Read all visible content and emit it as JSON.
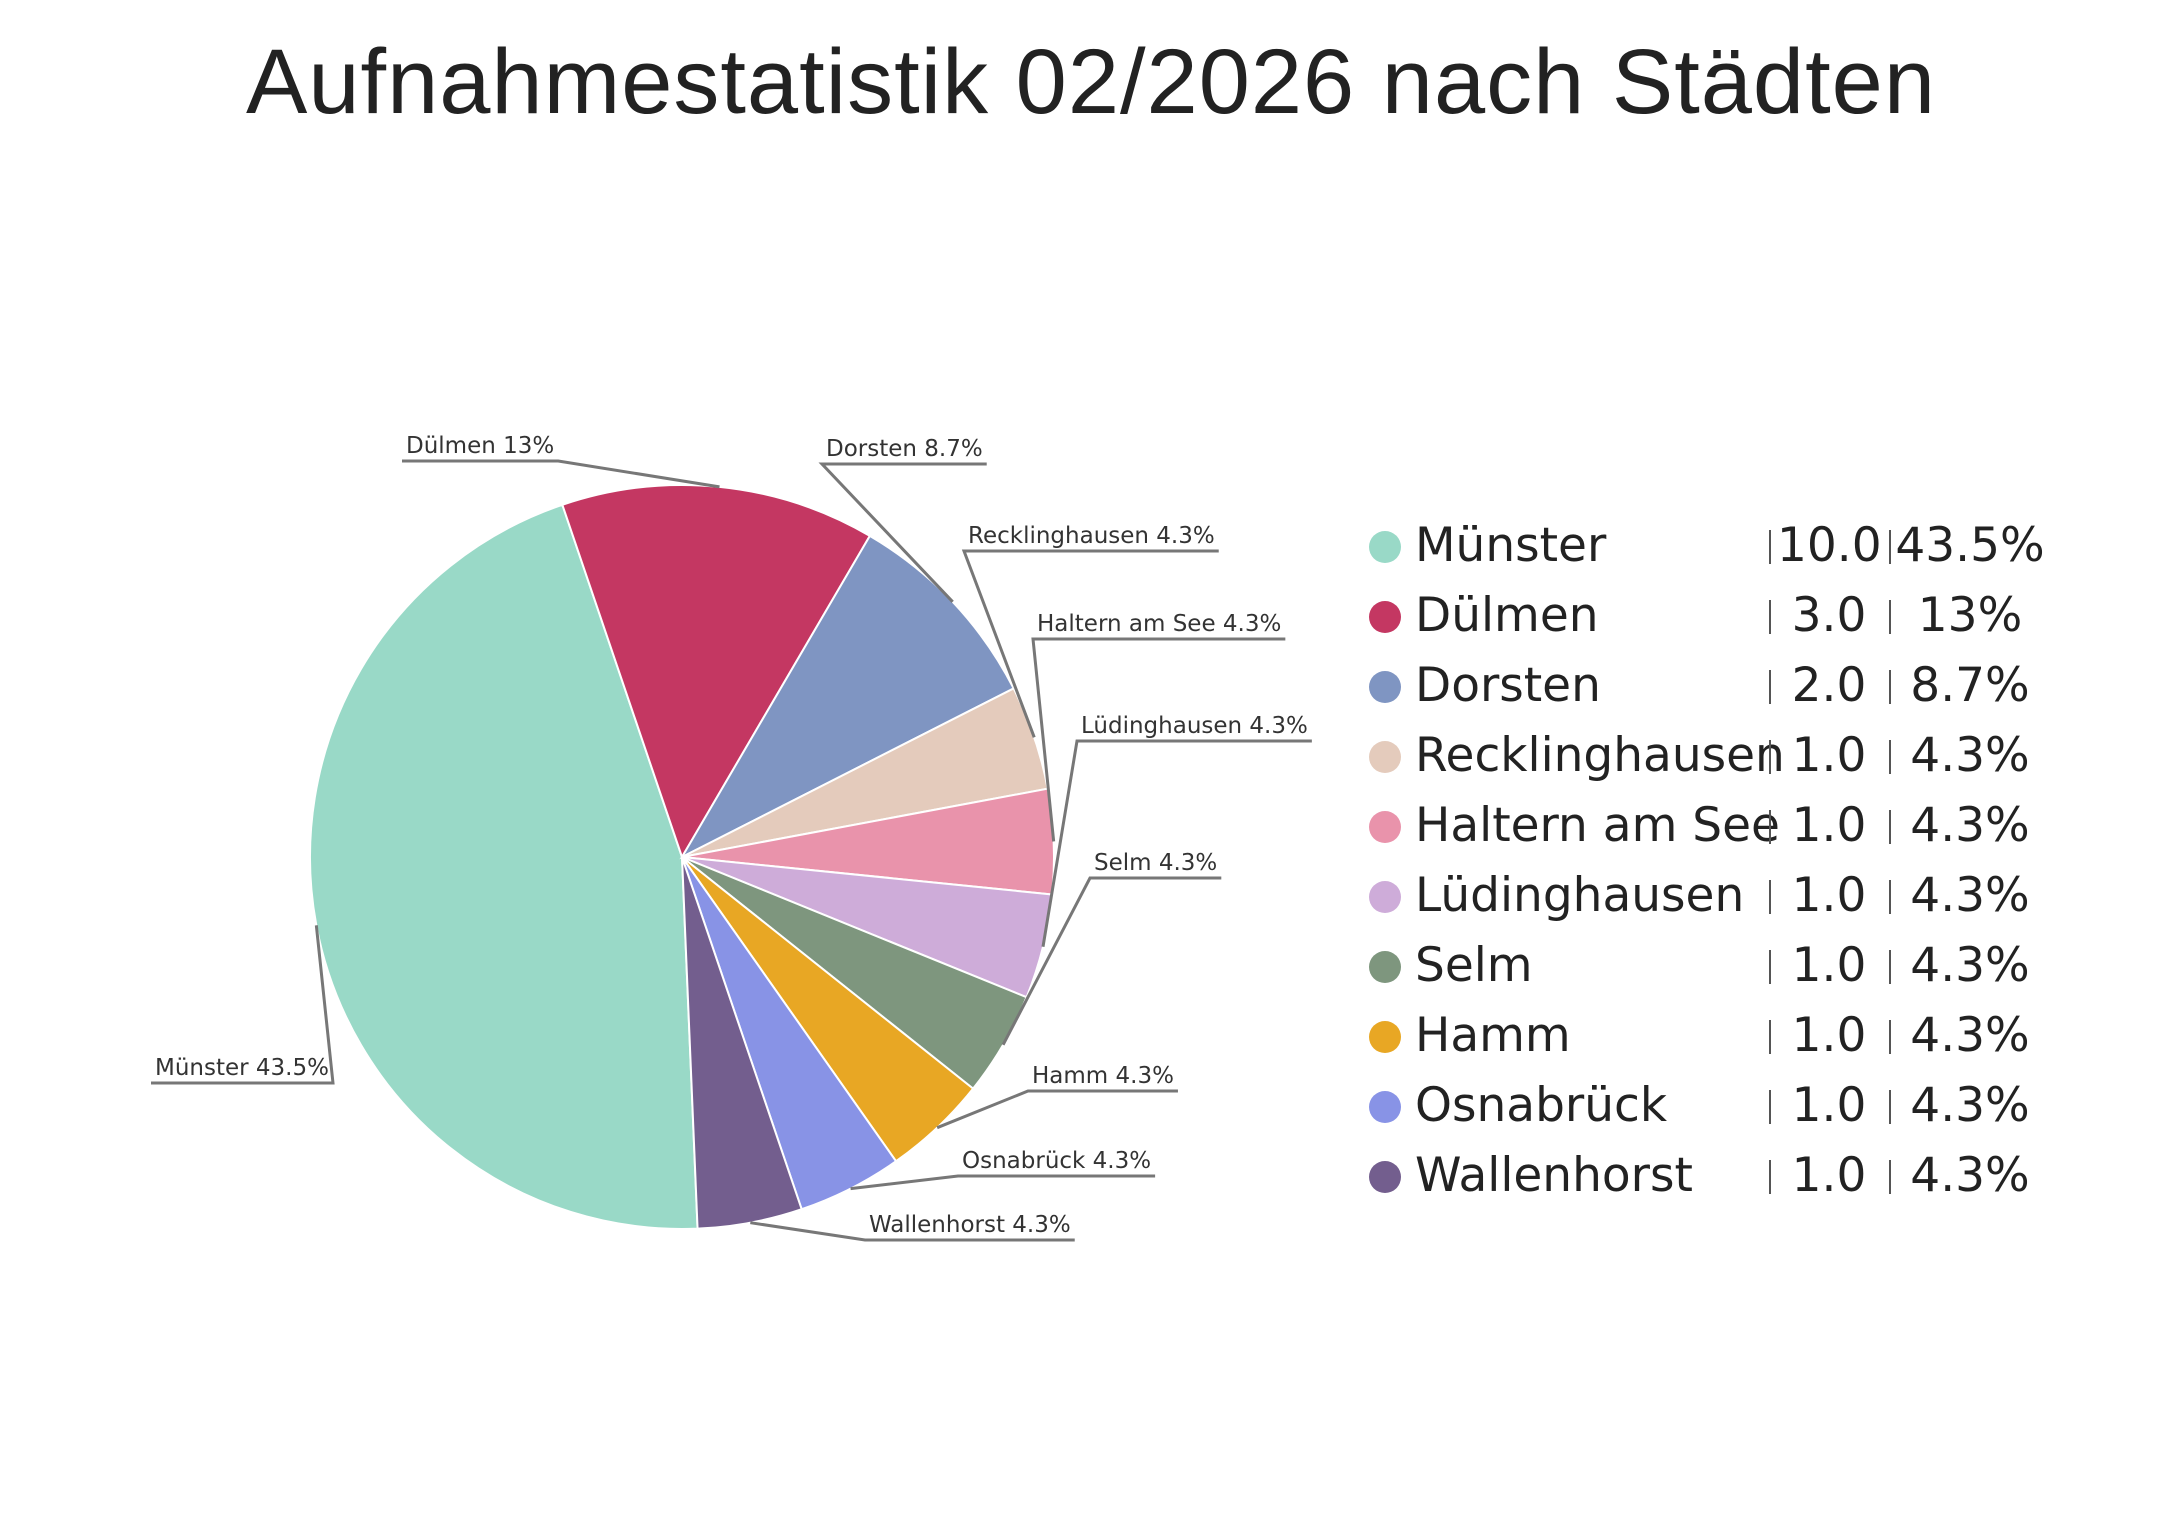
{
  "chart_data": {
    "type": "pie",
    "title": "Aufnahmestatistik 02/2026 nach Städten",
    "categories": [
      "Münster",
      "Dülmen",
      "Dorsten",
      "Recklinghausen",
      "Haltern am See",
      "Lüdinghausen",
      "Selm",
      "Hamm",
      "Osnabrück",
      "Wallenhorst"
    ],
    "values": [
      10.0,
      3.0,
      2.0,
      1.0,
      1.0,
      1.0,
      1.0,
      1.0,
      1.0,
      1.0
    ],
    "value_labels": [
      "10.0",
      "3.0",
      "2.0",
      "1.0",
      "1.0",
      "1.0",
      "1.0",
      "1.0",
      "1.0",
      "1.0"
    ],
    "percent_labels": [
      "43.5%",
      "13%",
      "8.7%",
      "4.3%",
      "4.3%",
      "4.3%",
      "4.3%",
      "4.3%",
      "4.3%",
      "4.3%"
    ],
    "slice_labels": [
      "Münster 43.5%",
      "Dülmen 13%",
      "Dorsten 8.7%",
      "Recklinghausen 4.3%",
      "Haltern am See 4.3%",
      "Lüdinghausen 4.3%",
      "Selm 4.3%",
      "Hamm 4.3%",
      "Osnabrück 4.3%",
      "Wallenhorst 4.3%"
    ],
    "colors": [
      "#99d9c7",
      "#c43762",
      "#7f95c2",
      "#e4cbbc",
      "#e993ab",
      "#ceacd9",
      "#7e967e",
      "#e8a724",
      "#8893e6",
      "#735e8e"
    ],
    "legend_position": "right"
  }
}
